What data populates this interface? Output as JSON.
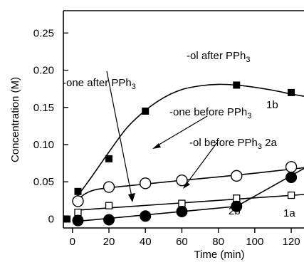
{
  "chart_data": {
    "type": "scatter",
    "xlabel": "Time (min)",
    "ylabel": "Concentration  (M)",
    "xlim": [
      -5,
      127
    ],
    "ylim": [
      -0.012,
      0.28
    ],
    "x_ticks": [
      0,
      20,
      40,
      60,
      80,
      100,
      120
    ],
    "x_tick_labels": [
      "0",
      "20",
      "40",
      "60",
      "80",
      "100",
      "120"
    ],
    "y_ticks": [
      0,
      0.05,
      0.1,
      0.15,
      0.2,
      0.25
    ],
    "y_tick_labels": [
      "0",
      "0.05",
      "0.10",
      "0.15",
      "0.20",
      "0.25"
    ],
    "grid": false,
    "series": [
      {
        "name": "1b",
        "marker": "filled-square",
        "x": [
          -3,
          3,
          20,
          40,
          90,
          120
        ],
        "y": [
          0.0,
          0.037,
          0.081,
          0.145,
          0.18,
          0.17
        ],
        "fit": "curve",
        "fit_points": [
          [
            1,
            0.025
          ],
          [
            10,
            0.055
          ],
          [
            20,
            0.09
          ],
          [
            30,
            0.123
          ],
          [
            40,
            0.146
          ],
          [
            50,
            0.163
          ],
          [
            60,
            0.174
          ],
          [
            70,
            0.179
          ],
          [
            80,
            0.181
          ],
          [
            90,
            0.18
          ],
          [
            100,
            0.177
          ],
          [
            110,
            0.173
          ],
          [
            120,
            0.168
          ],
          [
            127,
            0.165
          ]
        ]
      },
      {
        "name": "2a",
        "marker": "open-circle",
        "x": [
          3,
          20,
          40,
          60,
          90,
          120
        ],
        "y": [
          0.024,
          0.043,
          0.048,
          0.052,
          0.058,
          0.07
        ],
        "fit": "curve",
        "fit_points": [
          [
            3,
            0.026
          ],
          [
            7,
            0.034
          ],
          [
            12,
            0.039
          ],
          [
            20,
            0.042
          ],
          [
            40,
            0.047
          ],
          [
            60,
            0.052
          ],
          [
            90,
            0.059
          ],
          [
            120,
            0.067
          ],
          [
            127,
            0.069
          ]
        ]
      },
      {
        "name": "1a",
        "marker": "open-square",
        "x": [
          3,
          20,
          60,
          90,
          120
        ],
        "y": [
          0.009,
          0.018,
          0.021,
          0.028,
          0.032
        ],
        "fit": "line",
        "fit_points": [
          [
            3,
            0.012
          ],
          [
            127,
            0.033
          ]
        ]
      },
      {
        "name": "2b",
        "marker": "filled-circle",
        "x": [
          3,
          20,
          40,
          60,
          90,
          120
        ],
        "y": [
          -0.002,
          -0.001,
          0.004,
          0.01,
          0.017,
          0.056
        ],
        "fit": "piecewise",
        "fit_points": [
          [
            3,
            -0.003
          ],
          [
            90,
            0.017
          ],
          [
            127,
            0.068
          ]
        ]
      }
    ],
    "annotations": [
      {
        "id": "ol-after",
        "pre": "-ol after PPh",
        "sub": "3",
        "post": ""
      },
      {
        "id": "one-after",
        "pre": "-one after PPh",
        "sub": "3",
        "post": ""
      },
      {
        "id": "one-before",
        "pre": "-one before PPh",
        "sub": "3",
        "post": ""
      },
      {
        "id": "ol-before",
        "pre": "-ol before PPh",
        "sub": "3",
        "post": " 2a"
      },
      {
        "id": "label-1b",
        "pre": "1b",
        "sub": "",
        "post": ""
      },
      {
        "id": "label-2b",
        "pre": "2b",
        "sub": "",
        "post": ""
      },
      {
        "id": "label-1a",
        "pre": "1a",
        "sub": "",
        "post": ""
      }
    ]
  }
}
